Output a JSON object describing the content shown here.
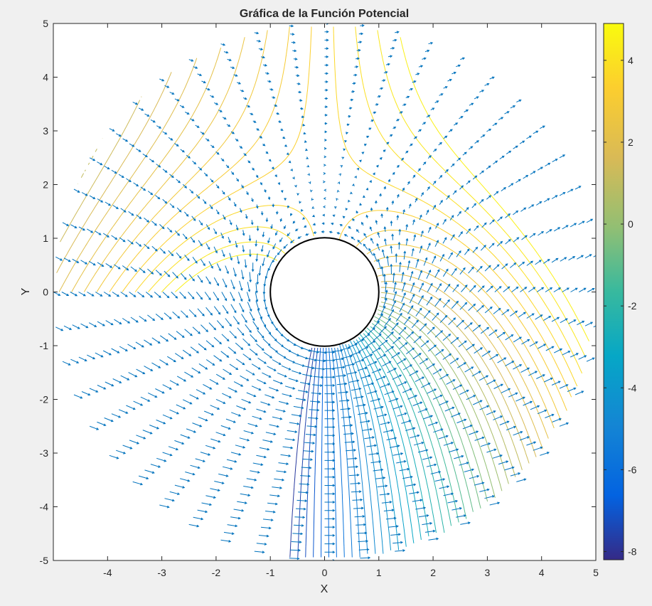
{
  "chart_data": {
    "type": "contour",
    "title": "Gráfica de la Función Potencial",
    "xlabel": "X",
    "ylabel": "Y",
    "xlim": [
      -5,
      5
    ],
    "ylim": [
      -5,
      5
    ],
    "xticks": [
      "-4",
      "-3",
      "-2",
      "-1",
      "0",
      "1",
      "2",
      "3",
      "4",
      "5"
    ],
    "yticks": [
      "5",
      "4",
      "3",
      "2",
      "1",
      "0",
      "-1",
      "-2",
      "-3",
      "-4",
      "-5"
    ],
    "grid": false,
    "cylinder": {
      "center": [
        0,
        0
      ],
      "radius": 1
    },
    "domain_radius": 5,
    "colorbar": {
      "range": [
        -8.2,
        4.9
      ],
      "ticks": [
        "4",
        "2",
        "0",
        "-2",
        "-4",
        "-6",
        "-8"
      ],
      "colormap": "parula"
    },
    "series": [
      {
        "kind": "contour",
        "field": "potential"
      },
      {
        "kind": "quiver",
        "field": "gradient"
      }
    ],
    "colors": {
      "quiver": "#0072bd",
      "cylinder_edge": "#000000",
      "background": "#f0f0f0"
    }
  }
}
